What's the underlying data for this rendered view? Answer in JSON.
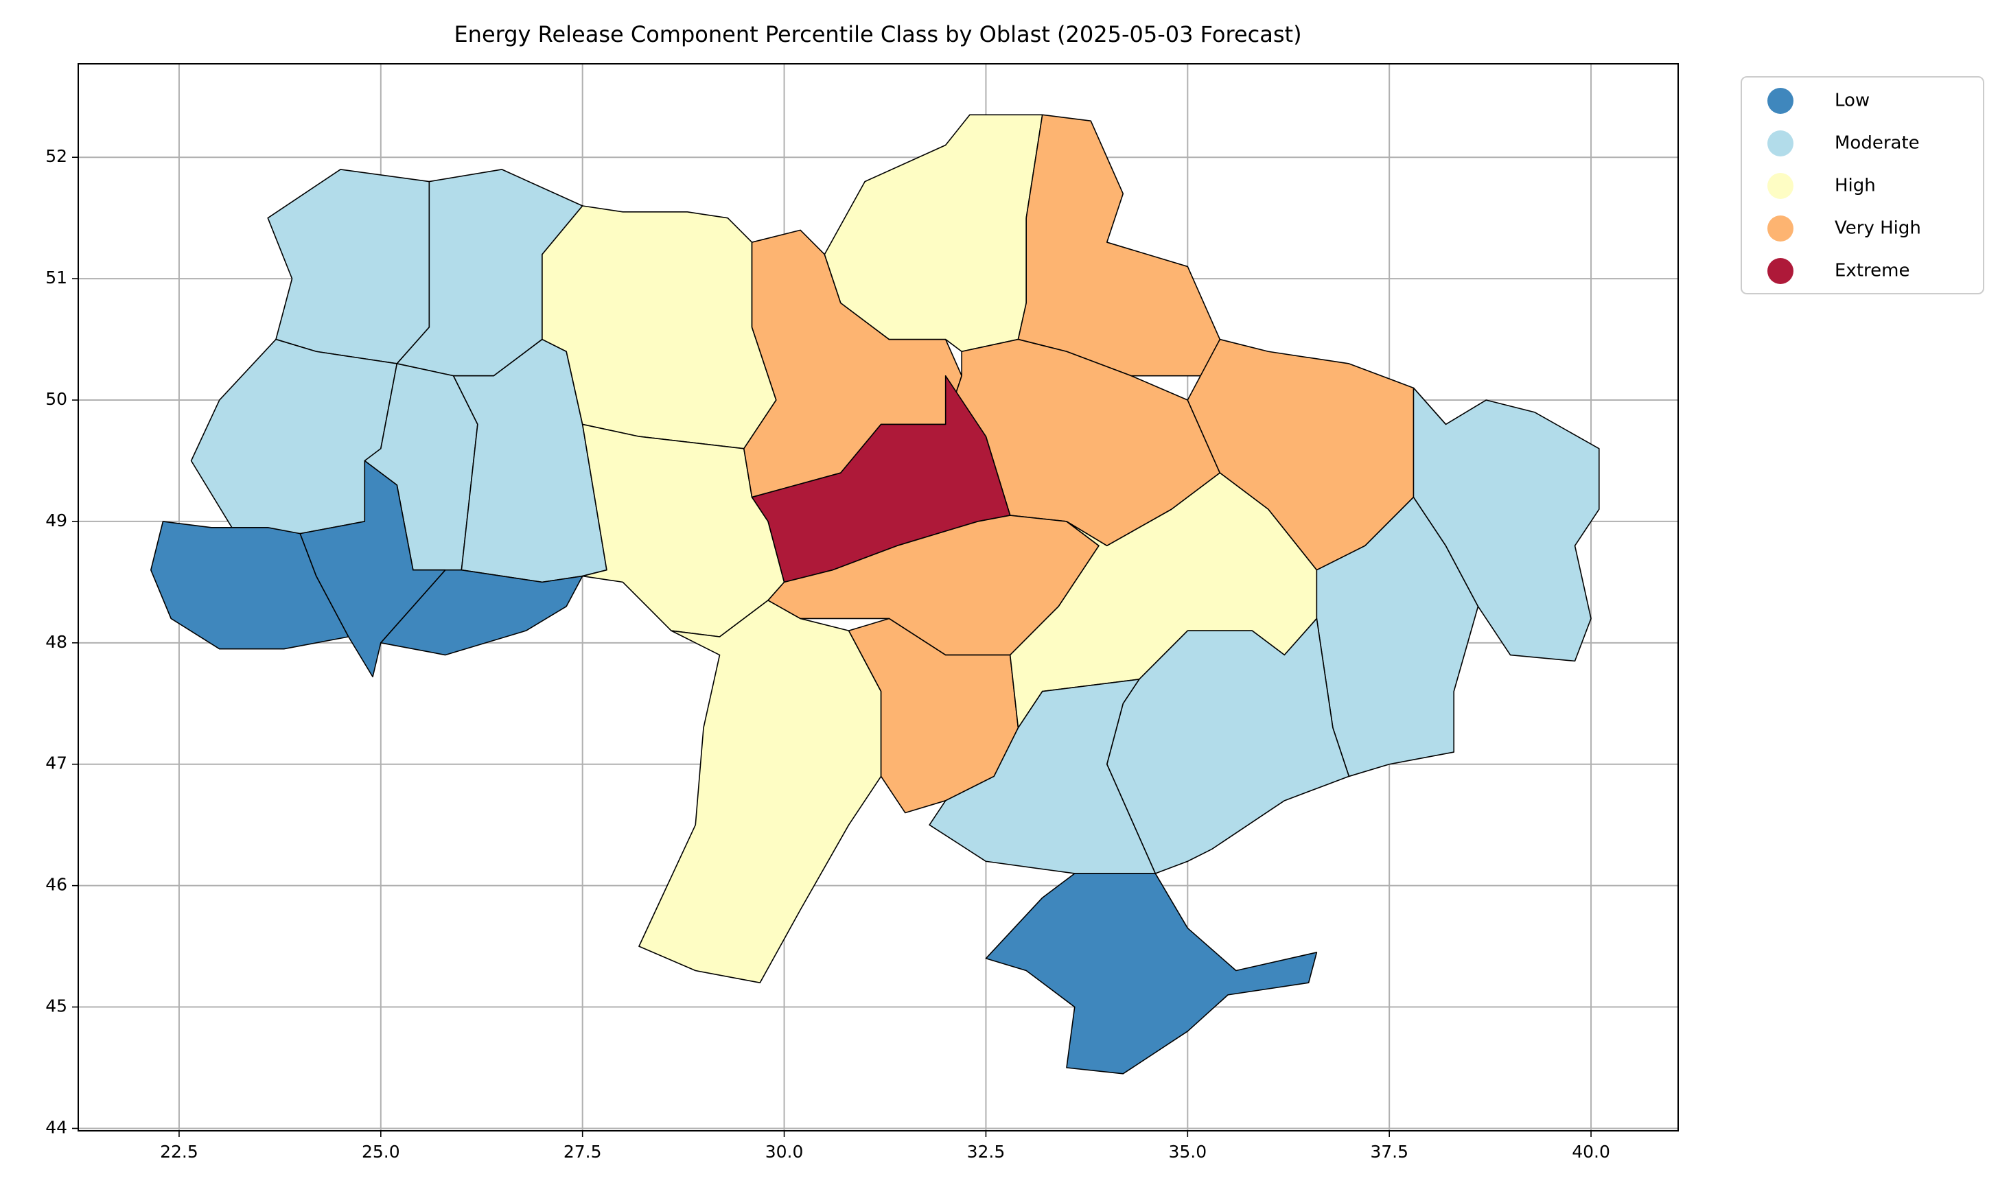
{
  "chart_data": {
    "type": "choropleth",
    "title": "Energy Release Component Percentile Class by Oblast (2025-05-03 Forecast)",
    "legend": [
      {
        "name": "Low",
        "color": "#3f87bd"
      },
      {
        "name": "Moderate",
        "color": "#b2dcea"
      },
      {
        "name": "High",
        "color": "#fefdc4"
      },
      {
        "name": "Very High",
        "color": "#fdb471"
      },
      {
        "name": "Extreme",
        "color": "#ae1939"
      }
    ],
    "legend_position": "outside upper right",
    "grid": true,
    "xlim": [
      21.25,
      41.08
    ],
    "ylim": [
      43.98,
      52.77
    ],
    "xticks": [
      22.5,
      {
        "value": 25,
        "label": "25.0"
      },
      27.5,
      {
        "value": 30,
        "label": "30.0"
      },
      32.5,
      {
        "value": 35,
        "label": "35.0"
      },
      37.5,
      {
        "value": 40,
        "label": "40.0"
      }
    ],
    "yticks": [
      44,
      45,
      46,
      47,
      48,
      49,
      50,
      51,
      52
    ]
  }
}
